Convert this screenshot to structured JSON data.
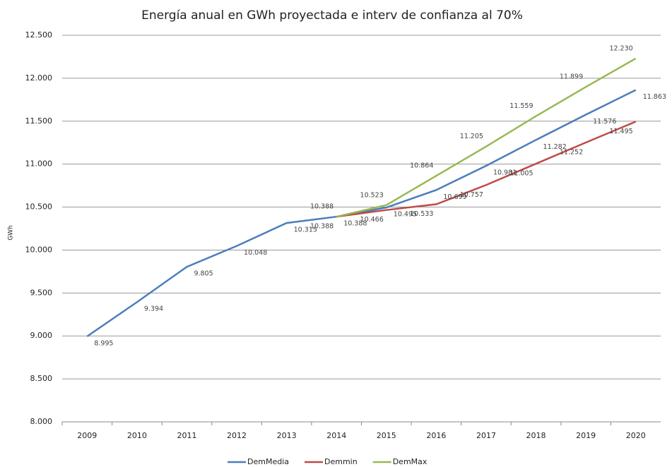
{
  "chart_data": {
    "type": "line",
    "title": "Energía anual en GWh proyectada e interv de confianza al 70%",
    "y_label": "GWh",
    "categories": [
      "2009",
      "2010",
      "2011",
      "2012",
      "2013",
      "2014",
      "2015",
      "2016",
      "2017",
      "2018",
      "2019",
      "2020"
    ],
    "series": [
      {
        "name": "DemMedia",
        "color": "#4a7ebb",
        "values": [
          8995,
          9394,
          9805,
          10048,
          10315,
          10388,
          10495,
          10699,
          10981,
          11282,
          11576,
          11863
        ],
        "value_labels": [
          "8.995",
          "9.394",
          "9.805",
          "10.048",
          "10.315",
          "10.388",
          "10.495",
          "10.699",
          "10.981",
          "11.282",
          "11.576",
          "11.863"
        ]
      },
      {
        "name": "Demmin",
        "color": "#be4b48",
        "values": [
          null,
          null,
          null,
          null,
          null,
          10388,
          10466,
          10533,
          10757,
          11005,
          11252,
          11495
        ],
        "value_labels": [
          null,
          null,
          null,
          null,
          null,
          "10.388",
          "10.466",
          "10.533",
          "10.757",
          "11.005",
          "11.252",
          "11.495"
        ]
      },
      {
        "name": "DemMax",
        "color": "#98b954",
        "values": [
          null,
          null,
          null,
          null,
          null,
          10388,
          10523,
          10864,
          11205,
          11559,
          11899,
          12230
        ],
        "value_labels": [
          null,
          null,
          null,
          null,
          null,
          "10.388",
          "10.523",
          "10.864",
          "11.205",
          "11.559",
          "11.899",
          "12.230"
        ]
      }
    ],
    "ylim": [
      8000,
      12500
    ],
    "yticks": [
      {
        "value": 8000,
        "label": "8.000"
      },
      {
        "value": 8500,
        "label": "8.500"
      },
      {
        "value": 9000,
        "label": "9.000"
      },
      {
        "value": 9500,
        "label": "9.500"
      },
      {
        "value": 10000,
        "label": "10.000"
      },
      {
        "value": 10500,
        "label": "10.500"
      },
      {
        "value": 11000,
        "label": "11.000"
      },
      {
        "value": 11500,
        "label": "11.500"
      },
      {
        "value": 12000,
        "label": "12.000"
      },
      {
        "value": 12500,
        "label": "12.500"
      }
    ],
    "grid": true,
    "legend": "bottom"
  }
}
